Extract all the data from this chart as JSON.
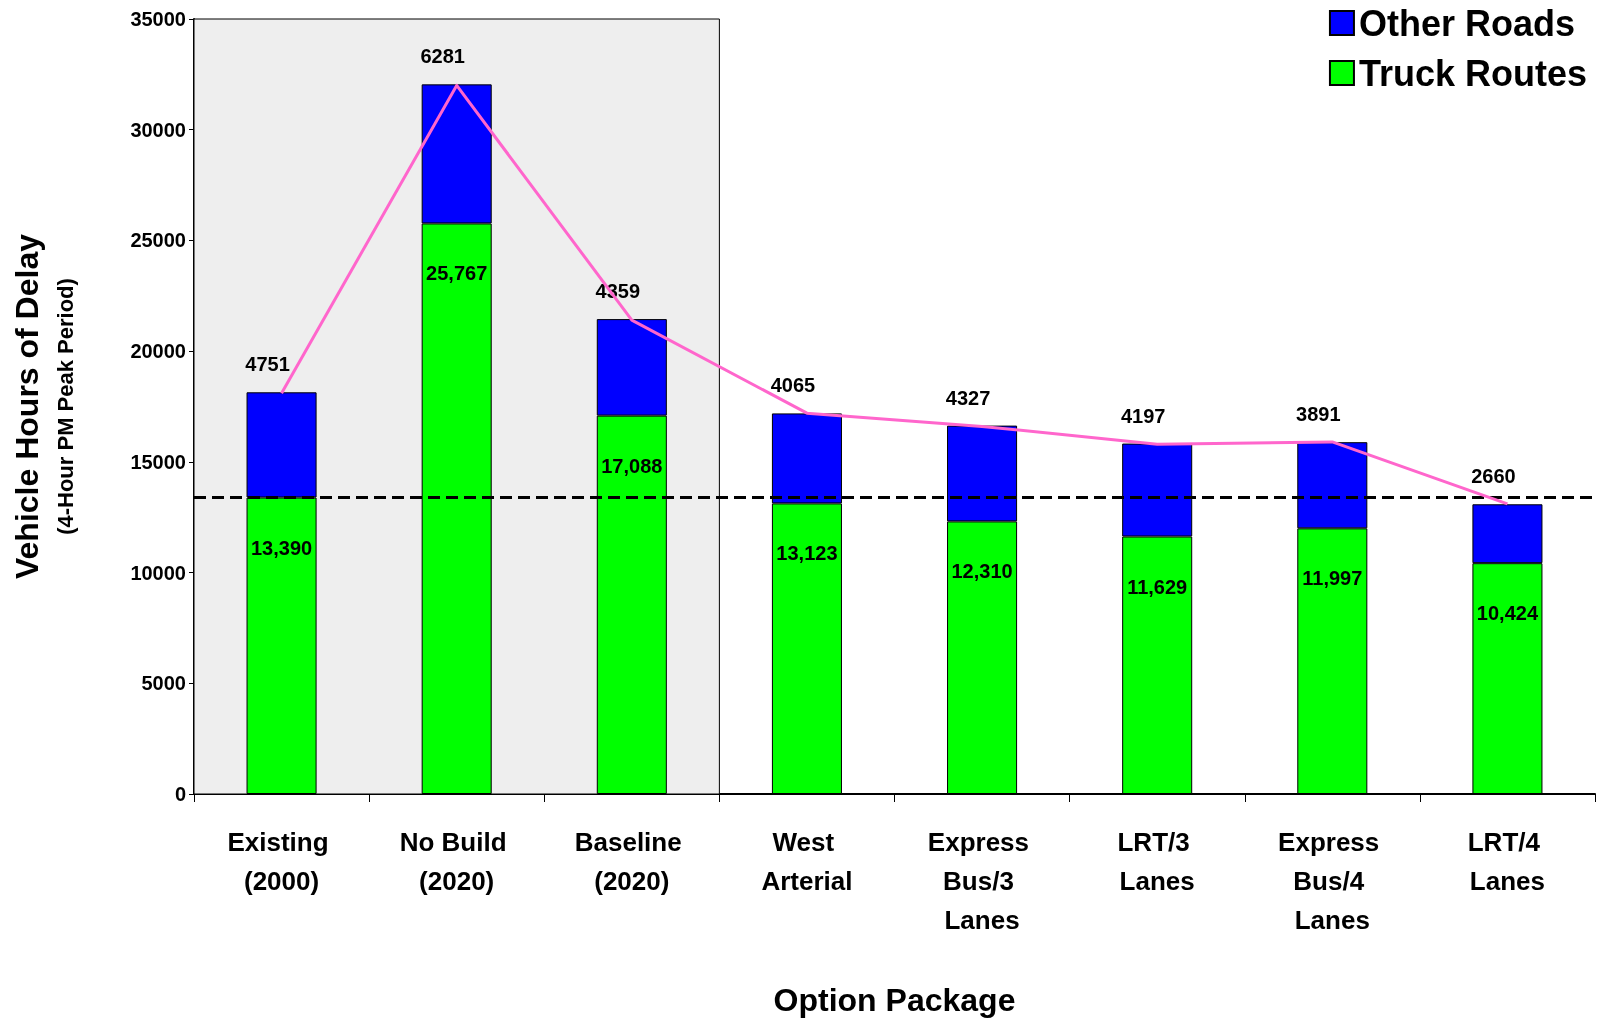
{
  "chart_data": {
    "type": "bar",
    "stacked": true,
    "xlabel": "Option Package",
    "ylabel": "Vehicle Hours of Delay\n(4-Hour PM Peak Period)",
    "categories": [
      "Existing (2000)",
      "No Build (2020)",
      "Baseline (2020)",
      "West Arterial",
      "Express Bus/3 Lanes",
      "LRT/3 Lanes",
      "Express Bus/4 Lanes",
      "LRT/4 Lanes"
    ],
    "series": [
      {
        "name": "Truck Routes",
        "color": "#00ff00",
        "values": [
          13390,
          25767,
          17088,
          13123,
          12310,
          11629,
          11997,
          10424
        ],
        "value_labels": [
          "13,390",
          "25,767",
          "17,088",
          "13,123",
          "12,310",
          "11,629",
          "11,997",
          "10,424"
        ]
      },
      {
        "name": "Other Roads",
        "color": "#0000ff",
        "values": [
          4751,
          6281,
          4359,
          4065,
          4327,
          4197,
          3891,
          2660
        ],
        "data_labels": true
      },
      {
        "type": "line",
        "color": "#ff66cc",
        "marker": "none",
        "values": [
          18100,
          32000,
          21400,
          17200,
          16600,
          15800,
          15900,
          13100
        ]
      }
    ],
    "ylim": [
      0,
      35000
    ],
    "yticks": [
      0,
      5000,
      10000,
      15000,
      20000,
      25000,
      30000,
      35000
    ],
    "grid": false,
    "legend": "top right",
    "ref_lines": [
      {
        "axis": "y",
        "value": 13390,
        "color": "#000000",
        "line_style": "dashed"
      }
    ],
    "bands": [
      {
        "axis": "x",
        "from": "Existing (2000)",
        "to": "Baseline (2020)",
        "color": "#eeeeee"
      }
    ]
  }
}
